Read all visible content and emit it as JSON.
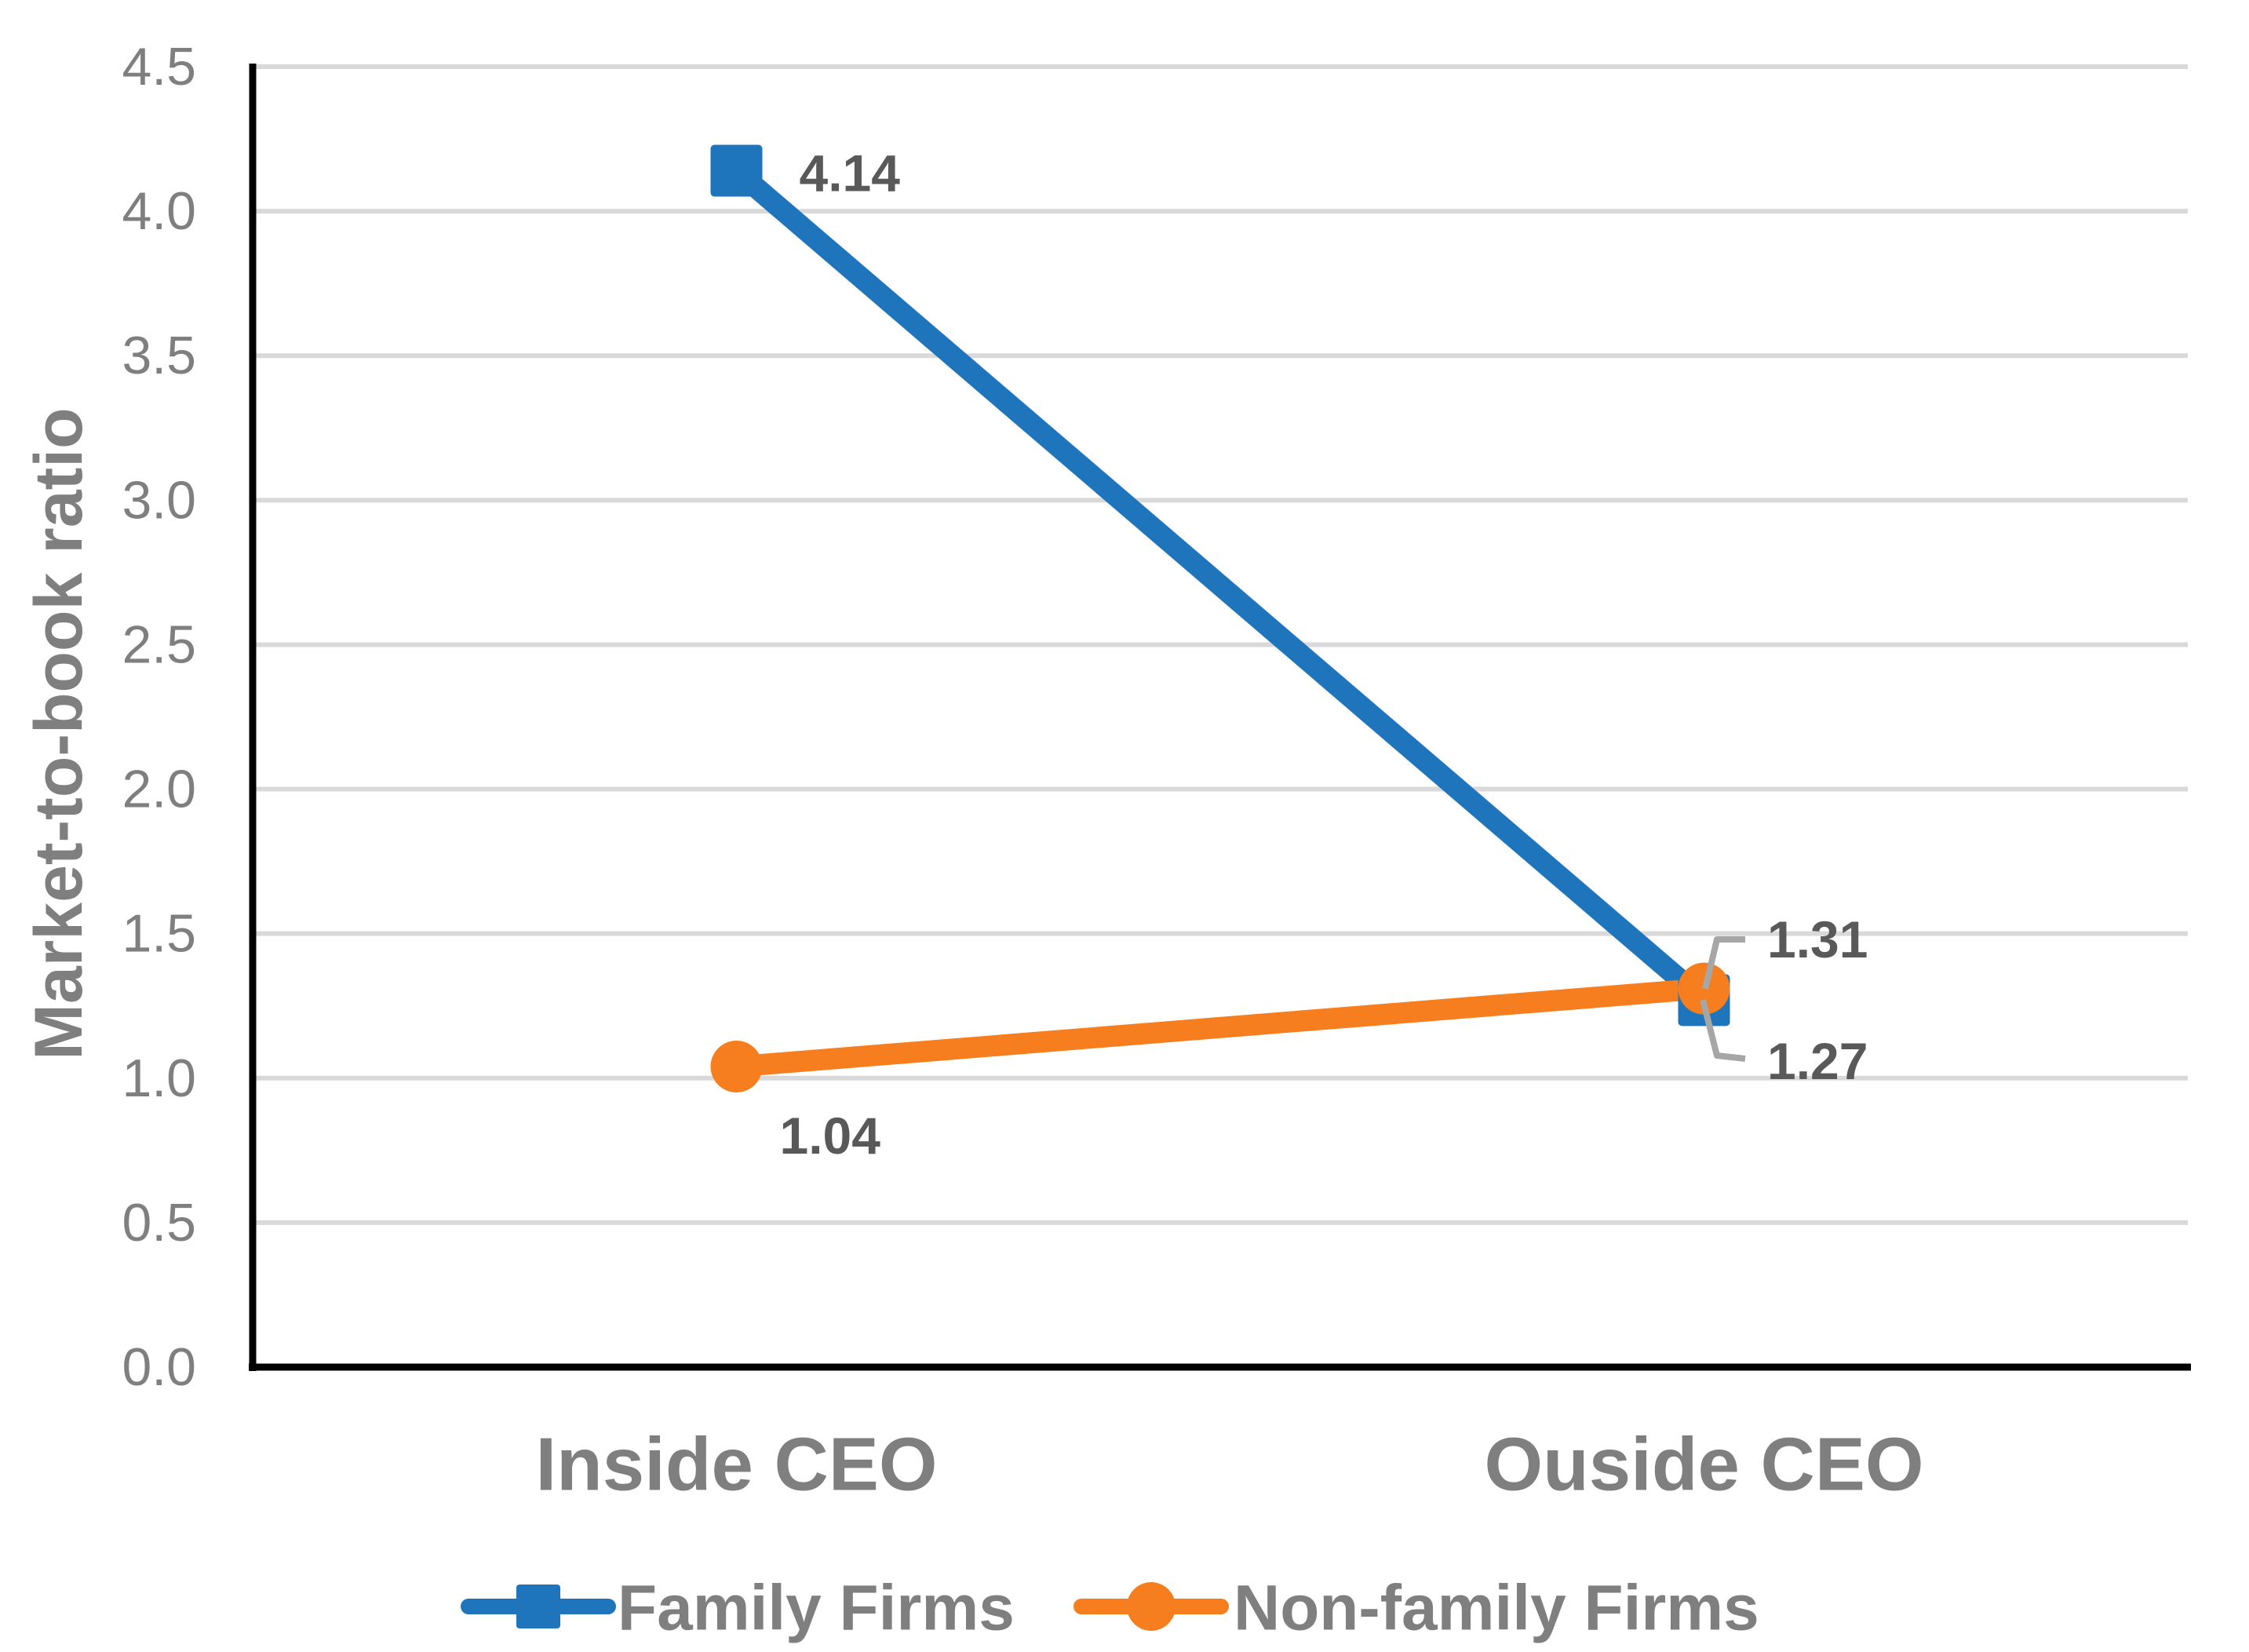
{
  "chart_data": {
    "type": "line",
    "title": "",
    "ylabel": "Market-to-book ratio",
    "xlabel": "",
    "categories": [
      "Inside CEO",
      "Ouside CEO"
    ],
    "series": [
      {
        "name": "Family Firms",
        "marker": "square",
        "color": "#1F75BC",
        "values": [
          4.14,
          1.27
        ],
        "labels": [
          "4.14",
          "1.27"
        ]
      },
      {
        "name": "Non-family Firms",
        "marker": "circle",
        "color": "#F67E1E",
        "values": [
          1.04,
          1.31
        ],
        "labels": [
          "1.04",
          "1.31"
        ]
      }
    ],
    "ylim": [
      0,
      4.5
    ],
    "yticks": [
      0,
      0.5,
      1.0,
      1.5,
      2.0,
      2.5,
      3.0,
      3.5,
      4.0,
      4.5
    ],
    "ytick_labels": [
      "0.0",
      "0.5",
      "1.0",
      "1.5",
      "2.0",
      "2.5",
      "3.0",
      "3.5",
      "4.0",
      "4.5"
    ],
    "grid": true,
    "legend_position": "bottom"
  },
  "style": {
    "background_color": "#FFFFFF",
    "gridline_color": "#D9D9D9",
    "axis_color": "#000000",
    "tick_label_color": "#7F7F7F",
    "category_label_color": "#7F7F7F",
    "axis_title_color": "#7F7F7F",
    "legend_text_color": "#7F7F7F",
    "data_label_color": "#595959",
    "leader_line_color": "#A6A6A6"
  }
}
